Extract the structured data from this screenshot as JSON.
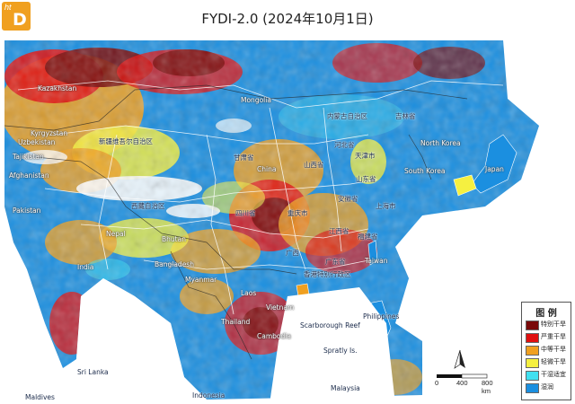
{
  "title": "FYDI-2.0 (2024年10月1日)",
  "logo": {
    "small": "ht",
    "big": "D"
  },
  "labels": {
    "kazakhstan": "Kazakhstan",
    "mongolia": "Mongolia",
    "inner_mongolia": "内蒙古自治区",
    "jilin": "吉林省",
    "kyrgyzstan": "Kyrgyzstan",
    "uzbekistan": "Uzbekistan",
    "tajikistan": "Tajikistan",
    "afghanistan": "Afghanistan",
    "xinjiang": "新疆维吾尔自治区",
    "gansu": "甘肃省",
    "north_korea": "North Korea",
    "south_korea": "South Korea",
    "japan": "Japan",
    "china": "China",
    "shanxi": "山西省",
    "hebei": "河北省",
    "tianjin": "天津市",
    "shandong": "山东省",
    "pakistan": "Pakistan",
    "tibet": "西藏自治区",
    "sichuan": "四川省",
    "chongqing": "重庆市",
    "anhui": "安徽省",
    "shanghai": "上海市",
    "jiangxi": "江西省",
    "fujian": "福建省",
    "nepal": "Nepal",
    "bhutan": "Bhutan",
    "guangxi": "广西",
    "guangdong": "广东省",
    "taiwan": "Taiwan",
    "hongkong": "香港特别行政区",
    "india": "India",
    "bangladesh": "Bangladesh",
    "myanmar": "Myanmar",
    "laos": "Laos",
    "vietnam": "Vietnam",
    "thailand": "Thailand",
    "cambodia": "Cambodia",
    "philippines": "Philippines",
    "scarborough": "Scarborough Reef",
    "spratly": "Spratly Is.",
    "srilanka": "Sri Lanka",
    "maldives": "Maldives",
    "indonesia": "Indonesia",
    "malaysia": "Malaysia"
  },
  "legend": {
    "title": "图 例",
    "items": [
      {
        "label": "特别干旱",
        "color": "#7a0a0a"
      },
      {
        "label": "严重干旱",
        "color": "#e01010"
      },
      {
        "label": "中等干旱",
        "color": "#f0a020"
      },
      {
        "label": "轻微干旱",
        "color": "#f5f040"
      },
      {
        "label": "干湿适宜",
        "color": "#40e0f0"
      },
      {
        "label": "湿润",
        "color": "#1b8fe0"
      }
    ]
  },
  "scale": {
    "ticks": [
      "0",
      "400",
      "800 km"
    ]
  },
  "north_symbol": "north-arrow"
}
